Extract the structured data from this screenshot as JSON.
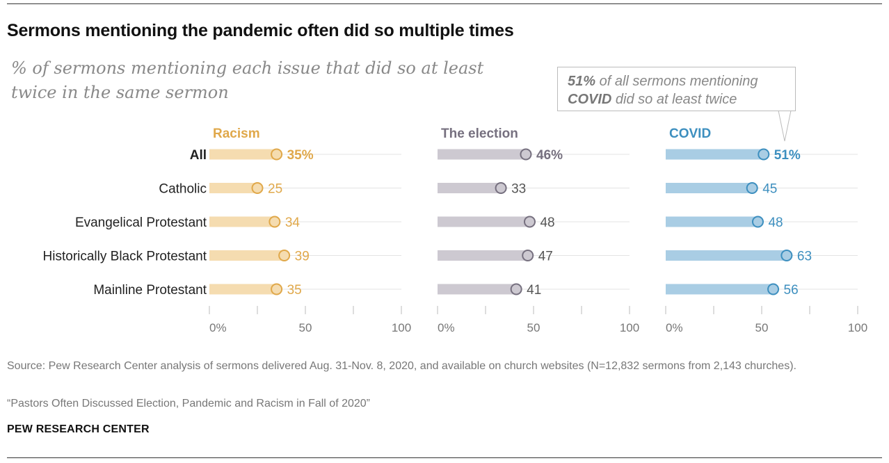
{
  "header": {
    "title": "Sermons mentioning the pandemic often did so multiple times",
    "subtitle": "% of sermons mentioning each issue that did so at least twice in the same sermon"
  },
  "callout": {
    "pct": "51%",
    "text1": " of all sermons mentioning",
    "covid": "COVID",
    "text2": " did so at least twice"
  },
  "footer": {
    "source": "Source: Pew Research Center analysis of sermons delivered Aug. 31-Nov. 8, 2020, and available on church websites (N=12,832 sermons from 2,143 churches).",
    "report": "“Pastors Often Discussed Election, Pandemic and Racism in Fall of 2020”",
    "brand": "PEW RESEARCH CENTER"
  },
  "chart_data": {
    "type": "dot",
    "categories": [
      "All",
      "Catholic",
      "Evangelical Protestant",
      "Historically Black Protestant",
      "Mainline Protestant"
    ],
    "series": [
      {
        "name": "Racism",
        "values": [
          35,
          25,
          34,
          39,
          35
        ],
        "color": "#e0a84a",
        "bar_color": "#f5dcb0"
      },
      {
        "name": "The election",
        "values": [
          46,
          33,
          48,
          47,
          41
        ],
        "color": "#76707f",
        "bar_color": "#cdc9d1"
      },
      {
        "name": "COVID",
        "values": [
          51,
          45,
          48,
          63,
          56
        ],
        "color": "#3d8fbf",
        "bar_color": "#a9cde4"
      }
    ],
    "xlim": [
      0,
      100
    ],
    "ticks": [
      0,
      50,
      100
    ],
    "tick_labels": [
      "0%",
      "50",
      "100"
    ],
    "first_row_suffix": "%"
  }
}
